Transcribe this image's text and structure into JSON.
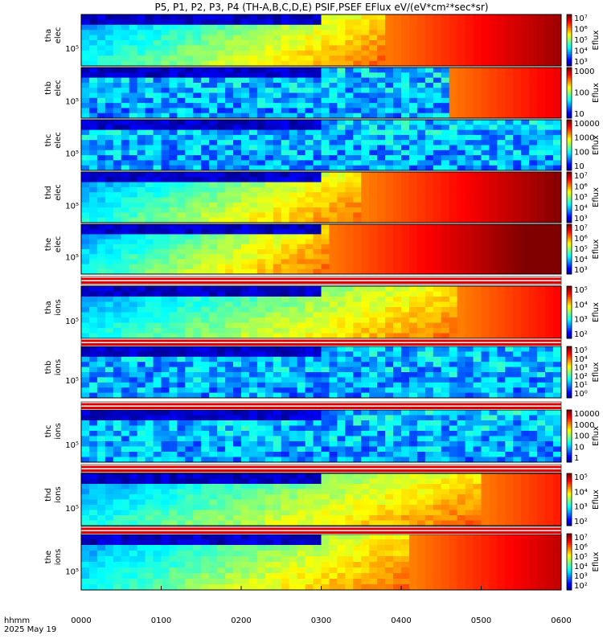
{
  "title": "P5, P1, P2, P3, P4 (TH-A,B,C,D,E) PSIF,PSEF EFlux eV/(eV*cm²*sec*sr)",
  "chart_data": {
    "type": "heatmap",
    "x_ticks": [
      "0000",
      "0100",
      "0200",
      "0300",
      "0400",
      "0500",
      "0600"
    ],
    "time_label": "hhmm",
    "date_label": "2025 May 19",
    "colorbar_label": "Eflux",
    "panels": [
      {
        "probe": "tha",
        "species": "elec",
        "ytick": "10⁵",
        "cb_ticks": [
          "10⁷",
          "10⁶",
          "10⁵",
          "10⁴",
          "10³"
        ],
        "hot_start": 0.62,
        "seed": 1
      },
      {
        "probe": "thb",
        "species": "elec",
        "ytick": "10⁵",
        "cb_ticks": [
          "1000",
          "100",
          "10"
        ],
        "hot_start": 0.75,
        "seed": 2,
        "noisy": true
      },
      {
        "probe": "thc",
        "species": "elec",
        "ytick": "10⁵",
        "cb_ticks": [
          "10000",
          "1000",
          "100",
          "10"
        ],
        "hot_start": 2.0,
        "seed": 3,
        "noisy": true
      },
      {
        "probe": "thd",
        "species": "elec",
        "ytick": "10⁵",
        "cb_ticks": [
          "10⁷",
          "10⁶",
          "10⁵",
          "10⁴",
          "10³"
        ],
        "hot_start": 0.58,
        "seed": 4
      },
      {
        "probe": "the",
        "species": "elec",
        "ytick": "10⁵",
        "cb_ticks": [
          "10⁷",
          "10⁶",
          "10⁵",
          "10⁴",
          "10³"
        ],
        "hot_start": 0.5,
        "seed": 5
      },
      {
        "probe": "tha",
        "species": "ions",
        "ytick": "10⁵",
        "cb_ticks": [
          "10⁵",
          "10⁴",
          "10³",
          "10²"
        ],
        "hot_start": 0.78,
        "seed": 6
      },
      {
        "probe": "thb",
        "species": "ions",
        "ytick": "10⁵",
        "cb_ticks": [
          "10⁵",
          "10⁴",
          "10³",
          "10²",
          "10¹",
          "10⁰"
        ],
        "hot_start": 2.0,
        "seed": 7,
        "noisy": true
      },
      {
        "probe": "thc",
        "species": "ions",
        "ytick": "10⁵",
        "cb_ticks": [
          "10000",
          "1000",
          "100",
          "10",
          "1"
        ],
        "hot_start": 2.0,
        "seed": 8,
        "noisy": true
      },
      {
        "probe": "thd",
        "species": "ions",
        "ytick": "10⁵",
        "cb_ticks": [
          "10⁵",
          "10⁴",
          "10³",
          "10²"
        ],
        "hot_start": 0.82,
        "seed": 9
      },
      {
        "probe": "the",
        "species": "ions",
        "ytick": "10⁵",
        "cb_ticks": [
          "10⁷",
          "10⁶",
          "10⁵",
          "10⁴",
          "10³",
          "10²"
        ],
        "hot_start": 0.68,
        "seed": 10
      }
    ]
  }
}
